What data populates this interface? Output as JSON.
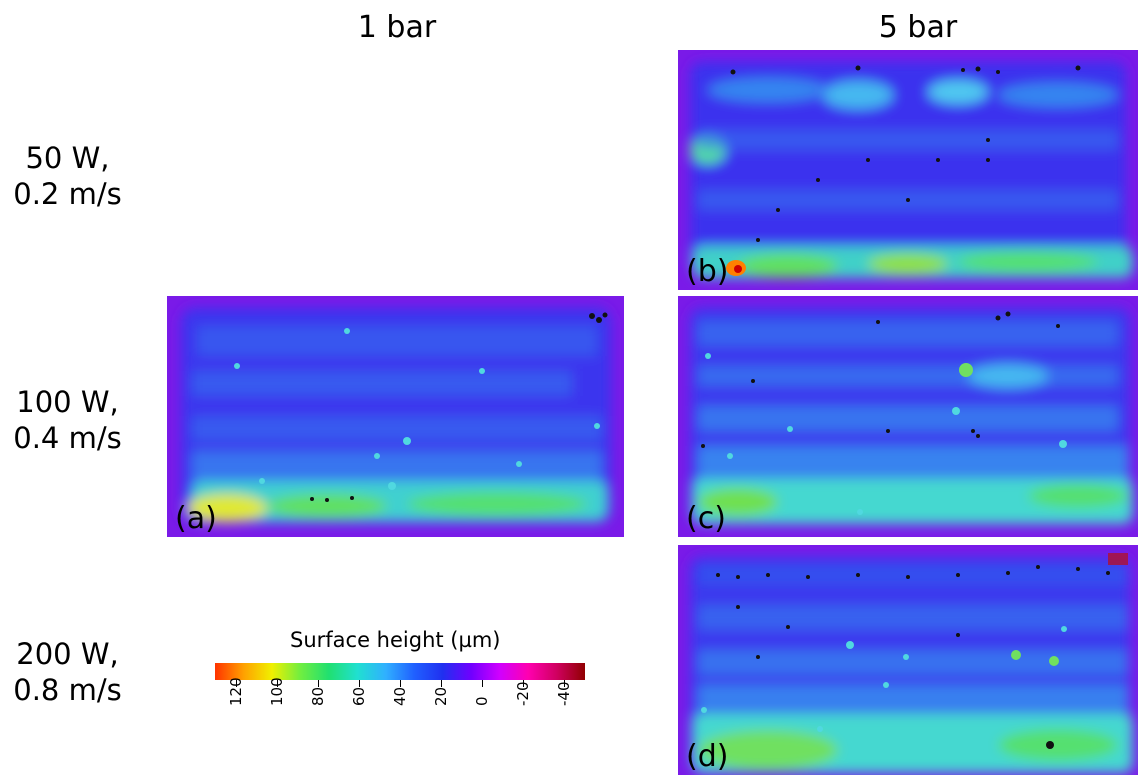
{
  "columns": [
    "1 bar",
    "5 bar"
  ],
  "rows": [
    {
      "power": "50 W,",
      "speed": "0.2 m/s"
    },
    {
      "power": "100 W,",
      "speed": "0.4 m/s"
    },
    {
      "power": "200 W,",
      "speed": "0.8 m/s"
    }
  ],
  "panels": [
    "(a)",
    "(b)",
    "(c)",
    "(d)"
  ],
  "colors": {
    "background": "#7a1ae8",
    "base": "#3a2cf0",
    "mid": "#2f8df0",
    "high": "#4ad0e6",
    "peak": "#4ee07a"
  },
  "chart_data": {
    "type": "heatmap",
    "colorbar": {
      "title": "Surface height (µm)",
      "ticks": [
        "120",
        "100",
        "80",
        "60",
        "40",
        "20",
        "0",
        "-20",
        "-40"
      ],
      "tick_values": [
        120,
        100,
        80,
        60,
        40,
        20,
        0,
        -20,
        -40
      ],
      "range": [
        130,
        -50
      ],
      "colors": [
        "#ff3300",
        "#ffa000",
        "#f0f000",
        "#70ee40",
        "#20e070",
        "#20e0d0",
        "#30b0ff",
        "#2060ff",
        "#2030f0",
        "#7000ff",
        "#d000ff",
        "#ff00b0",
        "#d00060",
        "#900000"
      ]
    }
  }
}
